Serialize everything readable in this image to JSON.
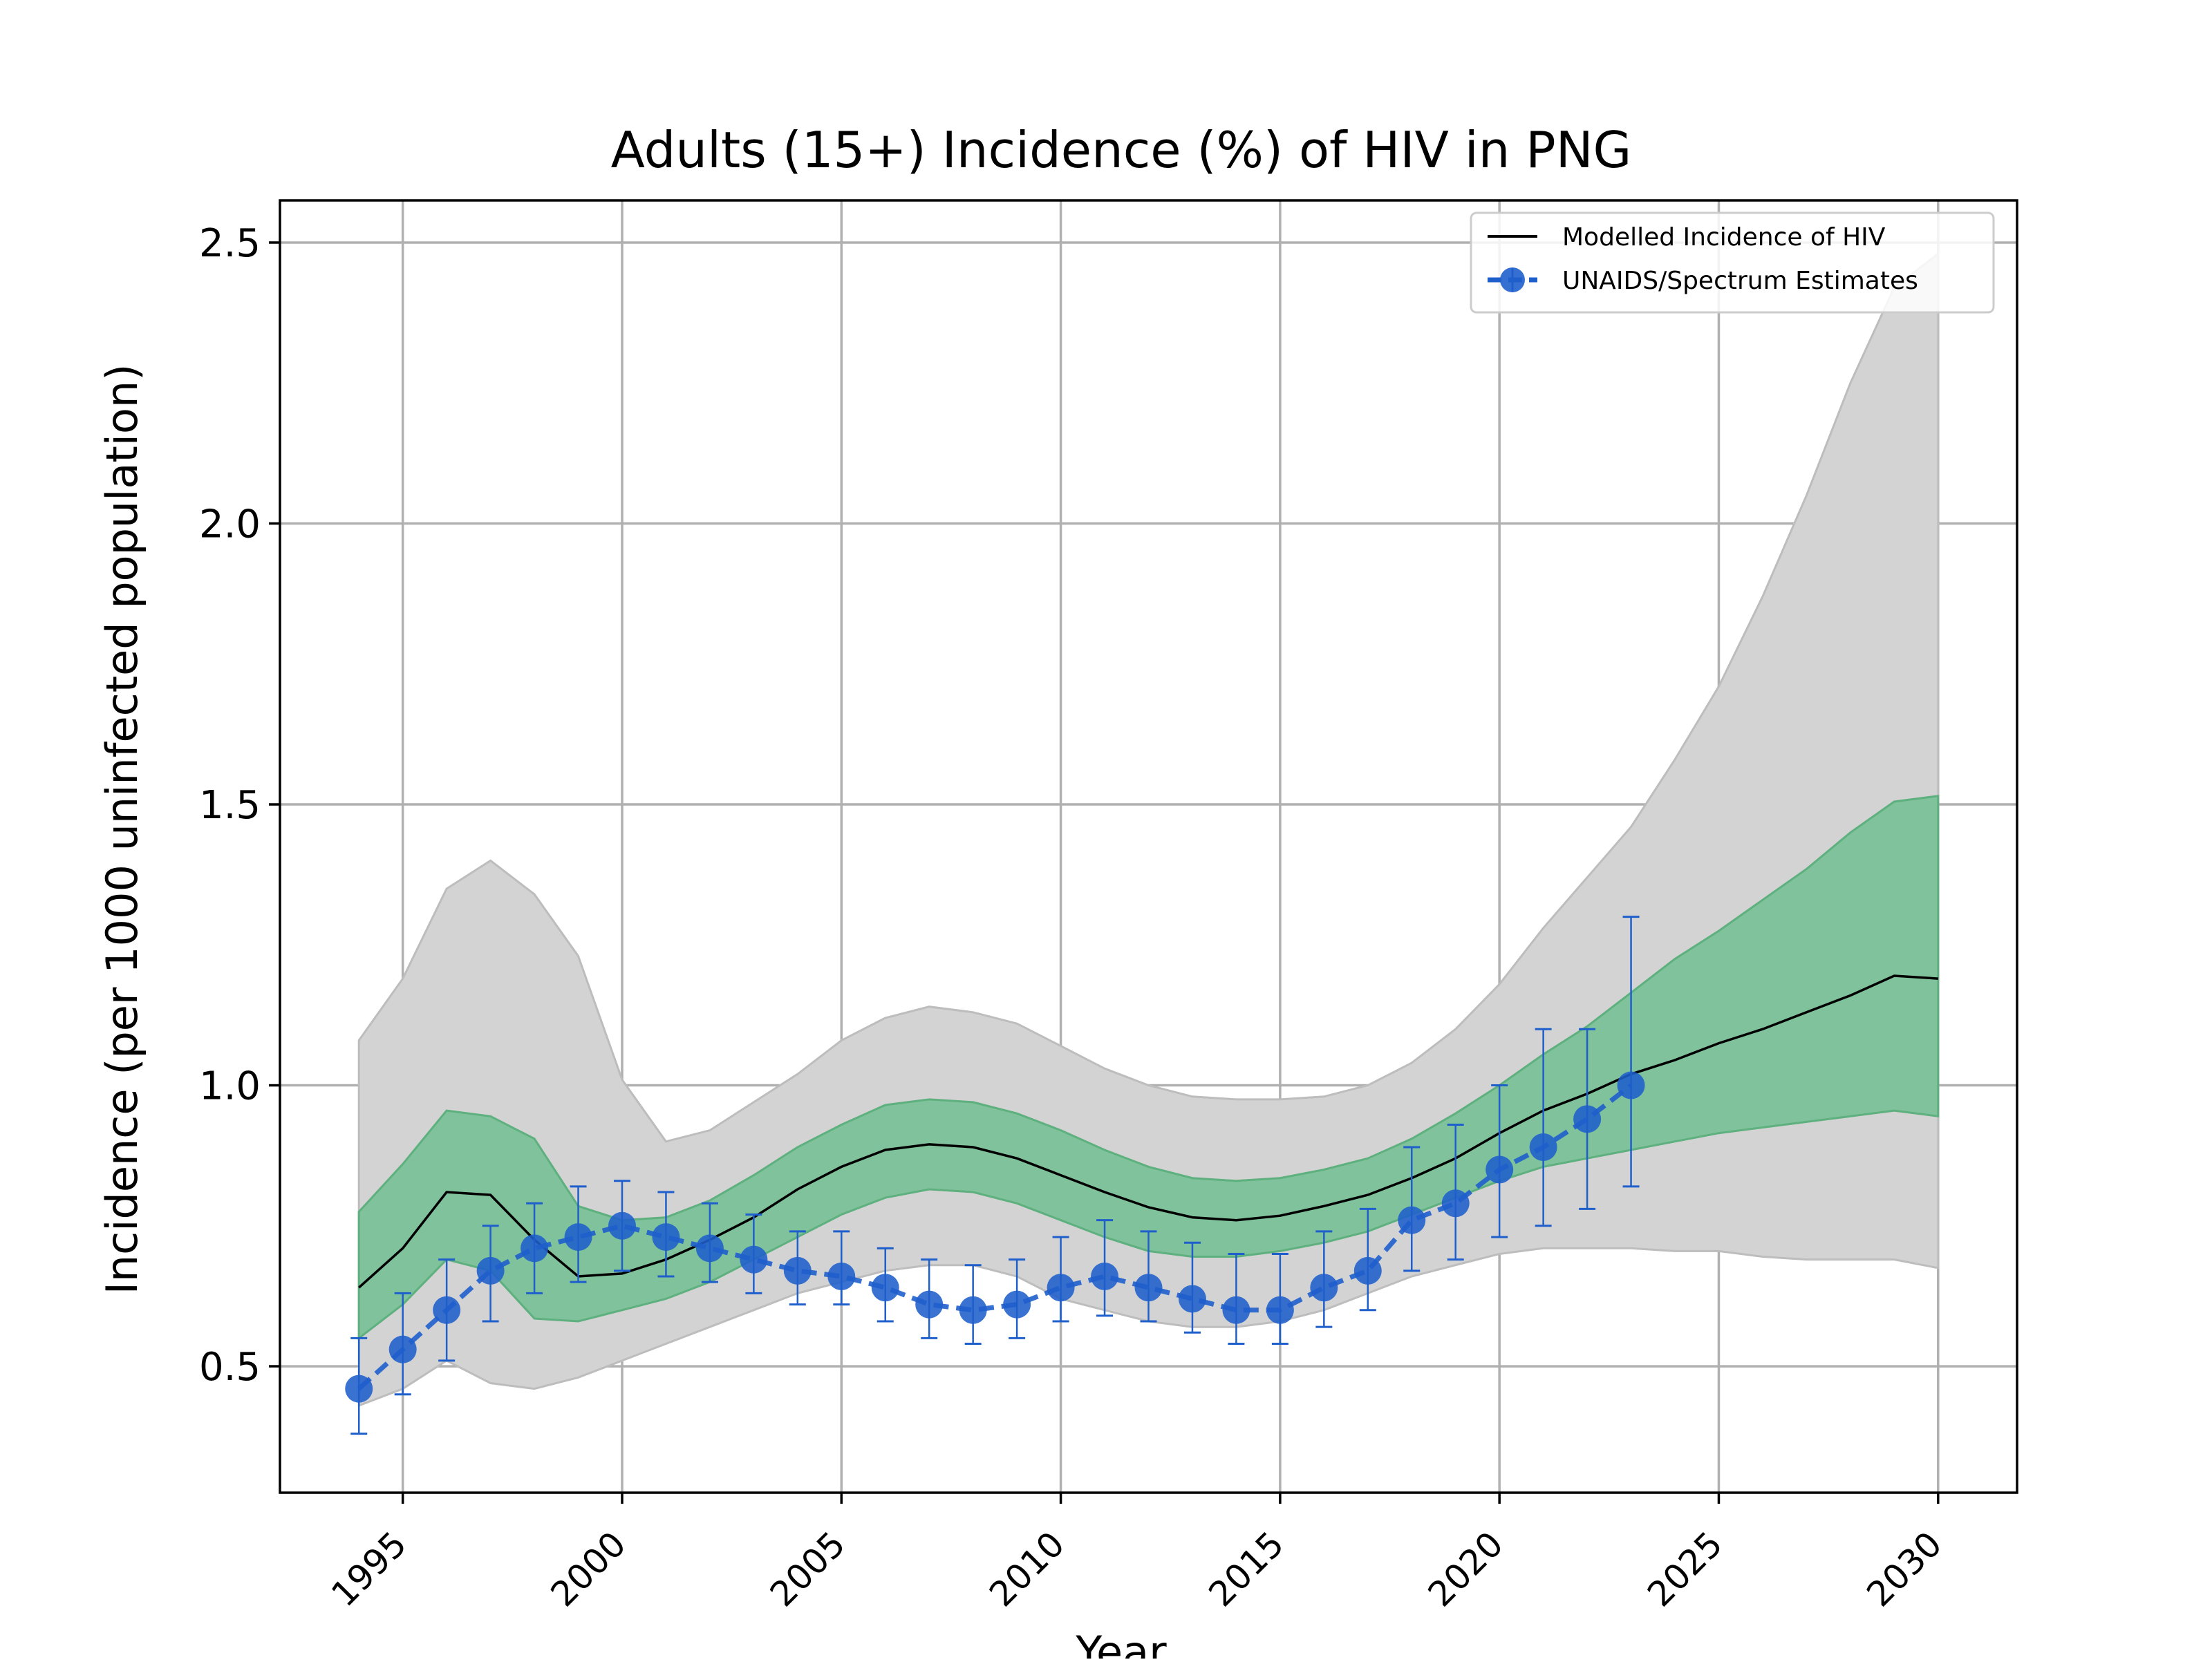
{
  "colors": {
    "outer_band_fill": "#d3d3d3",
    "outer_band_edge": "#bdbdbd",
    "inner_band_fill": "#7fc29b",
    "inner_band_edge": "#5fb07f",
    "model_line": "#000000",
    "estimates": "#1f5fcc",
    "grid": "#b0b0b0"
  },
  "chart_data": {
    "type": "line",
    "title": "Adults (15+) Incidence (%) of HIV in PNG",
    "xlabel": "Year",
    "ylabel": "Incidence (per 1000 uninfected population)",
    "xlim": [
      1992.2,
      2031.8
    ],
    "ylim": [
      0.275,
      2.575
    ],
    "xticks": [
      1995,
      2000,
      2005,
      2010,
      2015,
      2020,
      2025,
      2030
    ],
    "xtick_labels": [
      "1995",
      "2000",
      "2005",
      "2010",
      "2015",
      "2020",
      "2025",
      "2030"
    ],
    "yticks": [
      0.5,
      1.0,
      1.5,
      2.0,
      2.5
    ],
    "ytick_labels": [
      "0.5",
      "1.0",
      "1.5",
      "2.0",
      "2.5"
    ],
    "grid": true,
    "legend_position": "top-right",
    "legend": [
      "Modelled Incidence of HIV",
      "UNAIDS/Spectrum Estimates"
    ],
    "outer_band": {
      "x": [
        1994,
        1995,
        1996,
        1997,
        1998,
        1999,
        2000,
        2001,
        2002,
        2003,
        2004,
        2005,
        2006,
        2007,
        2008,
        2009,
        2010,
        2011,
        2012,
        2013,
        2014,
        2015,
        2016,
        2017,
        2018,
        2019,
        2020,
        2021,
        2022,
        2023,
        2024,
        2025,
        2026,
        2027,
        2028,
        2029,
        2030
      ],
      "lower": [
        0.43,
        0.46,
        0.51,
        0.47,
        0.46,
        0.48,
        0.51,
        0.54,
        0.57,
        0.6,
        0.63,
        0.65,
        0.67,
        0.68,
        0.68,
        0.66,
        0.62,
        0.6,
        0.58,
        0.57,
        0.57,
        0.58,
        0.6,
        0.63,
        0.66,
        0.68,
        0.7,
        0.71,
        0.71,
        0.71,
        0.705,
        0.705,
        0.695,
        0.69,
        0.69,
        0.69,
        0.675
      ],
      "upper": [
        1.08,
        1.19,
        1.35,
        1.4,
        1.34,
        1.23,
        1.01,
        0.9,
        0.92,
        0.97,
        1.02,
        1.08,
        1.12,
        1.14,
        1.13,
        1.11,
        1.07,
        1.03,
        1.0,
        0.98,
        0.975,
        0.975,
        0.98,
        1.0,
        1.04,
        1.1,
        1.18,
        1.28,
        1.37,
        1.46,
        1.58,
        1.71,
        1.87,
        2.05,
        2.25,
        2.42,
        2.48
      ]
    },
    "inner_band": {
      "x": [
        1994,
        1995,
        1996,
        1997,
        1998,
        1999,
        2000,
        2001,
        2002,
        2003,
        2004,
        2005,
        2006,
        2007,
        2008,
        2009,
        2010,
        2011,
        2012,
        2013,
        2014,
        2015,
        2016,
        2017,
        2018,
        2019,
        2020,
        2021,
        2022,
        2023,
        2024,
        2025,
        2026,
        2027,
        2028,
        2029,
        2030
      ],
      "lower": [
        0.55,
        0.61,
        0.69,
        0.67,
        0.585,
        0.58,
        0.6,
        0.62,
        0.65,
        0.69,
        0.73,
        0.77,
        0.8,
        0.815,
        0.81,
        0.79,
        0.76,
        0.73,
        0.705,
        0.695,
        0.695,
        0.705,
        0.72,
        0.74,
        0.77,
        0.8,
        0.83,
        0.855,
        0.87,
        0.885,
        0.9,
        0.915,
        0.925,
        0.935,
        0.945,
        0.955,
        0.945
      ],
      "upper": [
        0.775,
        0.86,
        0.955,
        0.945,
        0.905,
        0.785,
        0.76,
        0.765,
        0.795,
        0.84,
        0.89,
        0.93,
        0.965,
        0.975,
        0.97,
        0.95,
        0.92,
        0.885,
        0.855,
        0.835,
        0.83,
        0.835,
        0.85,
        0.87,
        0.905,
        0.95,
        1.0,
        1.055,
        1.105,
        1.165,
        1.225,
        1.275,
        1.33,
        1.385,
        1.45,
        1.505,
        1.515
      ]
    },
    "series": [
      {
        "name": "Modelled Incidence of HIV",
        "x": [
          1994,
          1995,
          1996,
          1997,
          1998,
          1999,
          2000,
          2001,
          2002,
          2003,
          2004,
          2005,
          2006,
          2007,
          2008,
          2009,
          2010,
          2011,
          2012,
          2013,
          2014,
          2015,
          2016,
          2017,
          2018,
          2019,
          2020,
          2021,
          2022,
          2023,
          2024,
          2025,
          2026,
          2027,
          2028,
          2029,
          2030
        ],
        "y": [
          0.64,
          0.71,
          0.81,
          0.805,
          0.725,
          0.66,
          0.665,
          0.69,
          0.725,
          0.765,
          0.815,
          0.855,
          0.885,
          0.895,
          0.89,
          0.87,
          0.84,
          0.81,
          0.783,
          0.765,
          0.76,
          0.768,
          0.785,
          0.805,
          0.835,
          0.87,
          0.915,
          0.955,
          0.985,
          1.02,
          1.045,
          1.075,
          1.1,
          1.13,
          1.16,
          1.195,
          1.19
        ]
      },
      {
        "name": "UNAIDS/Spectrum Estimates",
        "x": [
          1994,
          1995,
          1996,
          1997,
          1998,
          1999,
          2000,
          2001,
          2002,
          2003,
          2004,
          2005,
          2006,
          2007,
          2008,
          2009,
          2010,
          2011,
          2012,
          2013,
          2014,
          2015,
          2016,
          2017,
          2018,
          2019,
          2020,
          2021,
          2022,
          2023
        ],
        "y": [
          0.46,
          0.53,
          0.6,
          0.67,
          0.71,
          0.73,
          0.75,
          0.73,
          0.71,
          0.69,
          0.67,
          0.66,
          0.64,
          0.61,
          0.6,
          0.61,
          0.64,
          0.66,
          0.64,
          0.62,
          0.6,
          0.6,
          0.64,
          0.67,
          0.76,
          0.79,
          0.85,
          0.89,
          0.94,
          1.0
        ],
        "y_lower": [
          0.38,
          0.45,
          0.51,
          0.58,
          0.63,
          0.65,
          0.67,
          0.66,
          0.65,
          0.63,
          0.61,
          0.61,
          0.58,
          0.55,
          0.54,
          0.55,
          0.58,
          0.59,
          0.58,
          0.56,
          0.54,
          0.54,
          0.57,
          0.6,
          0.67,
          0.69,
          0.73,
          0.75,
          0.78,
          0.82
        ],
        "y_upper": [
          0.55,
          0.63,
          0.69,
          0.75,
          0.79,
          0.82,
          0.83,
          0.81,
          0.79,
          0.77,
          0.74,
          0.74,
          0.71,
          0.69,
          0.68,
          0.69,
          0.73,
          0.76,
          0.74,
          0.72,
          0.7,
          0.7,
          0.74,
          0.78,
          0.89,
          0.93,
          1.0,
          1.1,
          1.1,
          1.3
        ]
      }
    ]
  }
}
